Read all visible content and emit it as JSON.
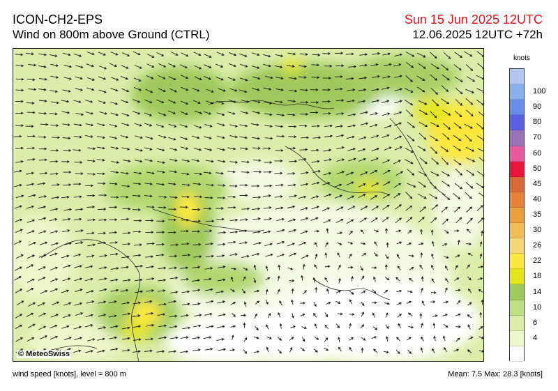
{
  "header": {
    "model": "ICON-CH2-EPS",
    "subtitle": "Wind on 800m above Ground (CTRL)",
    "valid_time": "Sun 15 Jun 2025 12UTC",
    "run_time": "12.06.2025 12UTC +72h"
  },
  "legend": {
    "unit": "knots",
    "levels": [
      {
        "label": "",
        "color": "#ffffff"
      },
      {
        "label": "4",
        "color": "#eef6cc"
      },
      {
        "label": "6",
        "color": "#dcedaa"
      },
      {
        "label": "10",
        "color": "#c2df84"
      },
      {
        "label": "14",
        "color": "#9ec95c"
      },
      {
        "label": "18",
        "color": "#e4e61a"
      },
      {
        "label": "22",
        "color": "#fce83c"
      },
      {
        "label": "26",
        "color": "#f6d87a"
      },
      {
        "label": "30",
        "color": "#f0bd56"
      },
      {
        "label": "35",
        "color": "#eba040"
      },
      {
        "label": "40",
        "color": "#e5843a"
      },
      {
        "label": "45",
        "color": "#d86a38"
      },
      {
        "label": "50",
        "color": "#e8163c"
      },
      {
        "label": "60",
        "color": "#e85aa0"
      },
      {
        "label": "70",
        "color": "#9a72b8"
      },
      {
        "label": "80",
        "color": "#5a62e2"
      },
      {
        "label": "90",
        "color": "#6a8ee8"
      },
      {
        "label": "100",
        "color": "#8ab0ee"
      },
      {
        "label": "",
        "color": "#b2c8f2"
      }
    ]
  },
  "footer": {
    "variable_info": "wind speed [knots], level = 800 m",
    "stats": "Mean:   7.5 Max:  28.3 [knots]"
  },
  "copyright": "© MeteoSwiss"
}
